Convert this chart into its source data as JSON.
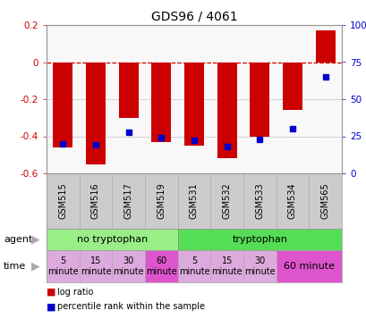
{
  "title": "GDS96 / 4061",
  "samples": [
    "GSM515",
    "GSM516",
    "GSM517",
    "GSM519",
    "GSM531",
    "GSM532",
    "GSM533",
    "GSM534",
    "GSM565"
  ],
  "log_ratios": [
    -0.46,
    -0.55,
    -0.3,
    -0.43,
    -0.45,
    -0.52,
    -0.4,
    -0.26,
    0.17
  ],
  "percentile_ranks": [
    20,
    19,
    28,
    24,
    22,
    18,
    23,
    30,
    65
  ],
  "ylim": [
    -0.6,
    0.2
  ],
  "yticks_left": [
    -0.6,
    -0.4,
    -0.2,
    0.0,
    0.2
  ],
  "yticks_right": [
    0,
    25,
    50,
    75,
    100
  ],
  "bar_color": "#cc0000",
  "dot_color": "#0000cc",
  "agent_bg_no_tryp": "#99ee88",
  "agent_bg_tryp": "#55dd55",
  "time_color_light": "#ddaadd",
  "time_color_dark": "#dd55cc",
  "agent_label_no_tryp": "no tryptophan",
  "agent_label_tryp": "tryptophan",
  "legend_red": "log ratio",
  "legend_blue": "percentile rank within the sample",
  "axis_bg": "#f8f8f8",
  "sample_bg": "#cccccc",
  "tick_label_color_left": "#cc0000",
  "tick_label_color_right": "#0000cc"
}
